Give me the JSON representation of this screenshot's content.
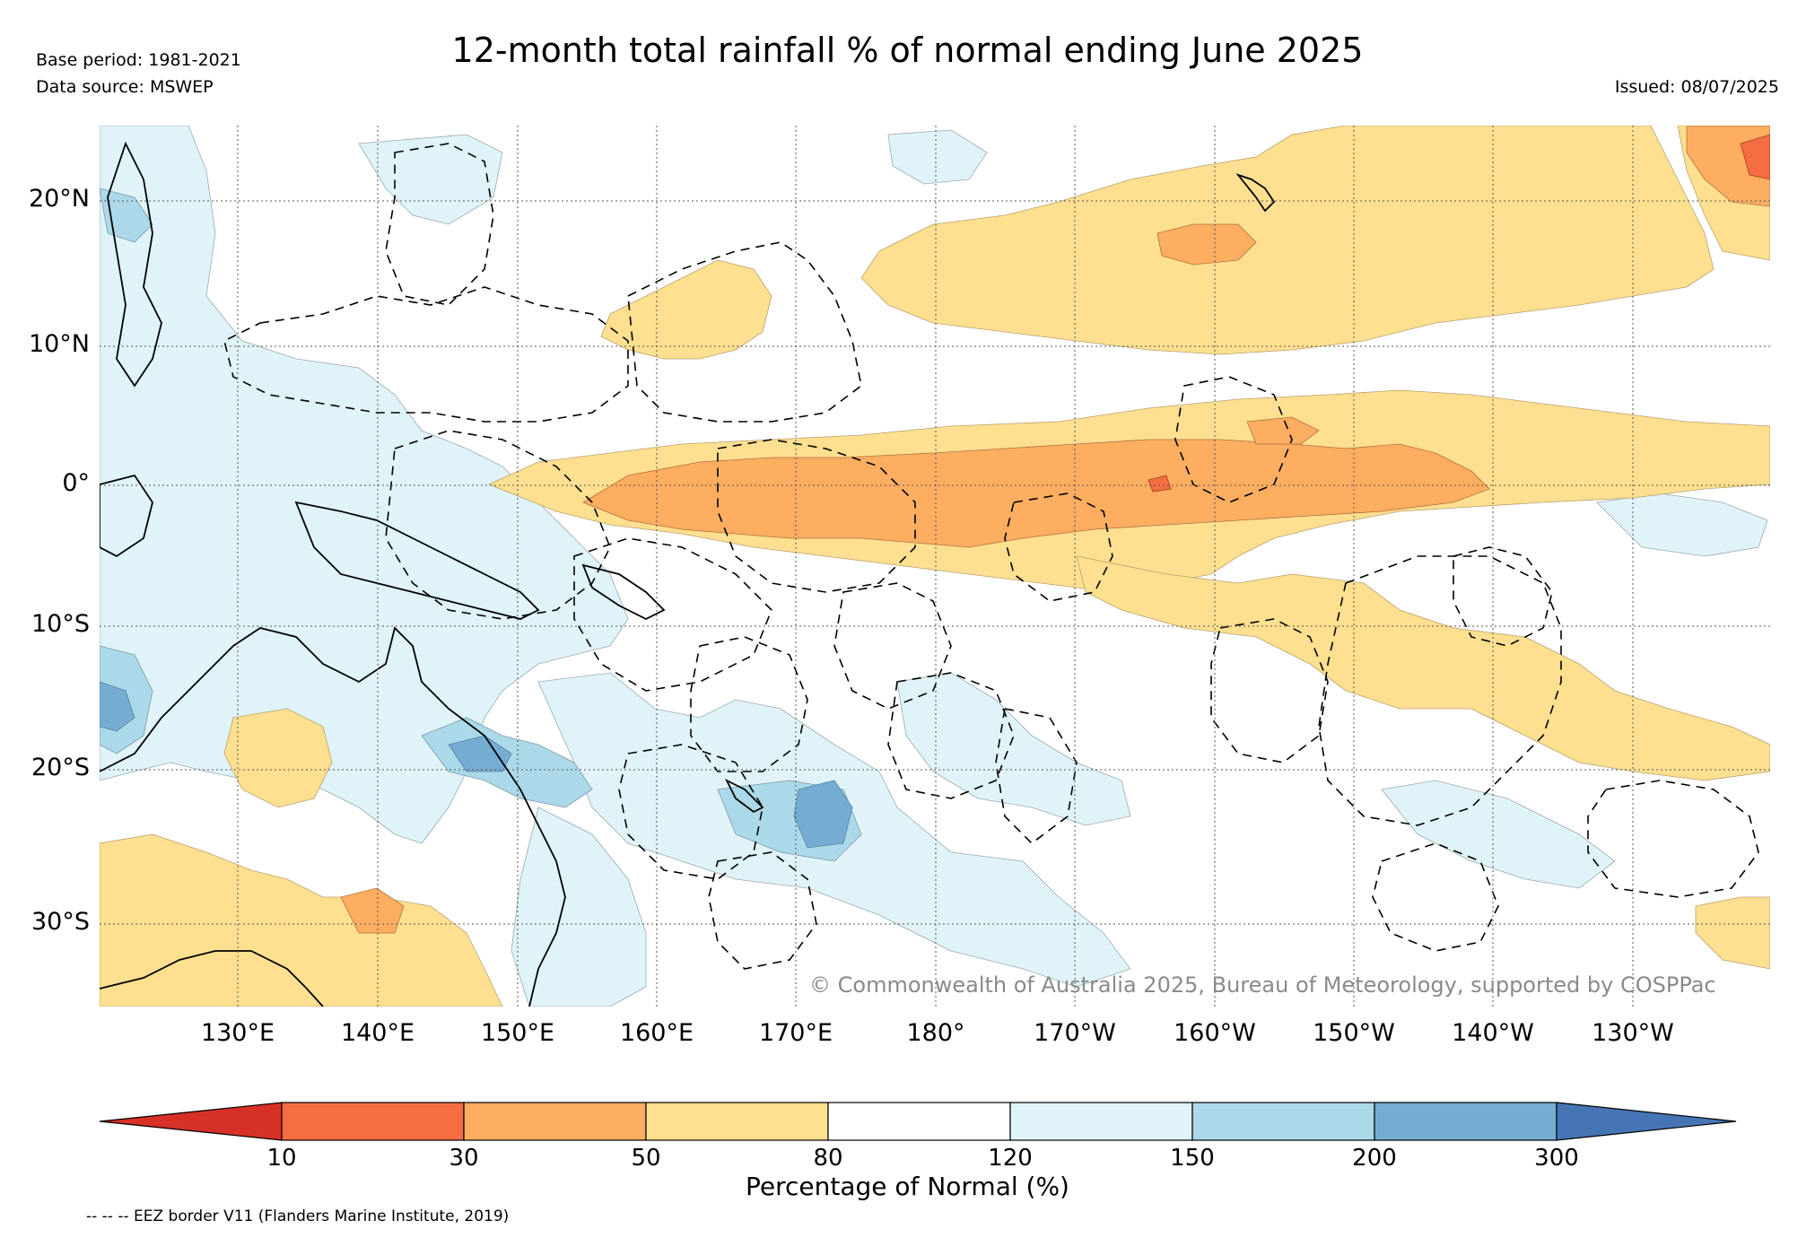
{
  "header": {
    "title": "12-month total rainfall % of normal ending June 2025",
    "base_period": "Base period: 1981-2021",
    "data_source": "Data source: MSWEP",
    "issued": "Issued: 08/07/2025"
  },
  "map": {
    "lat_labels": [
      "20°N",
      "10°N",
      "0°",
      "10°S",
      "20°S",
      "30°S"
    ],
    "lon_labels": [
      "130°E",
      "140°E",
      "150°E",
      "160°E",
      "170°E",
      "180°",
      "170°W",
      "160°W",
      "150°W",
      "140°W",
      "130°W"
    ],
    "copyright": "© Commonwealth of Australia 2025, Bureau of Meteorology, supported by COSPPac",
    "colors": {
      "below_10": "#d73027",
      "p10_30": "#f46d43",
      "p30_50": "#fdae61",
      "p50_80": "#fee090",
      "p80_120": "#ffffff",
      "p120_150": "#e0f3f8",
      "p150_200": "#abd9e9",
      "p200_300": "#74add1",
      "above_300": "#4575b4"
    }
  },
  "colorbar": {
    "ticks": [
      "10",
      "30",
      "50",
      "80",
      "120",
      "150",
      "200",
      "300"
    ],
    "label": "Percentage of Normal (%)"
  },
  "footer": {
    "eez_note": "-- -- -- EEZ border V11 (Flanders Marine Institute, 2019)"
  }
}
